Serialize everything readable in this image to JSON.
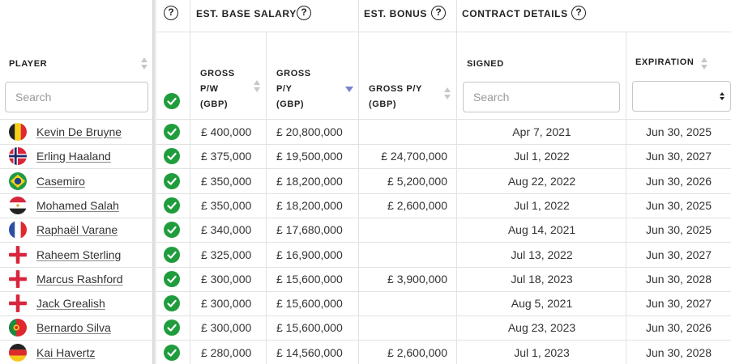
{
  "groups": {
    "base_salary": "EST. BASE SALARY",
    "bonus": "EST. BONUS",
    "contract": "CONTRACT DETAILS",
    "help_glyph": "?"
  },
  "columns": {
    "player": "PLAYER",
    "gross_pw": [
      "GROSS",
      "P/W",
      "(GBP)"
    ],
    "gross_py": [
      "GROSS",
      "P/Y",
      "(GBP)"
    ],
    "bonus_py": [
      "GROSS P/Y",
      "(GBP)"
    ],
    "signed": "SIGNED",
    "expiration": "EXPIRATION"
  },
  "filters": {
    "player_placeholder": "Search",
    "signed_placeholder": "Search",
    "expiration_value": ""
  },
  "colors": {
    "check": "#1f9d3d",
    "sort_active": "#7b83c9"
  },
  "rows": [
    {
      "name": "Kevin De Bruyne",
      "flag": "belgium-flag-icon",
      "pw": "£ 400,000",
      "py": "£ 20,800,000",
      "bonus": "",
      "signed": "Apr 7, 2021",
      "expiration": "Jun 30, 2025"
    },
    {
      "name": "Erling Haaland",
      "flag": "norway-flag-icon",
      "pw": "£ 375,000",
      "py": "£ 19,500,000",
      "bonus": "£ 24,700,000",
      "signed": "Jul 1, 2022",
      "expiration": "Jun 30, 2027"
    },
    {
      "name": "Casemiro",
      "flag": "brazil-flag-icon",
      "pw": "£ 350,000",
      "py": "£ 18,200,000",
      "bonus": "£ 5,200,000",
      "signed": "Aug 22, 2022",
      "expiration": "Jun 30, 2026"
    },
    {
      "name": "Mohamed Salah",
      "flag": "egypt-flag-icon",
      "pw": "£ 350,000",
      "py": "£ 18,200,000",
      "bonus": "£ 2,600,000",
      "signed": "Jul 1, 2022",
      "expiration": "Jun 30, 2025"
    },
    {
      "name": "Raphaël Varane",
      "flag": "france-flag-icon",
      "pw": "£ 340,000",
      "py": "£ 17,680,000",
      "bonus": "",
      "signed": "Aug 14, 2021",
      "expiration": "Jun 30, 2025"
    },
    {
      "name": "Raheem Sterling",
      "flag": "england-flag-icon",
      "pw": "£ 325,000",
      "py": "£ 16,900,000",
      "bonus": "",
      "signed": "Jul 13, 2022",
      "expiration": "Jun 30, 2027"
    },
    {
      "name": "Marcus Rashford",
      "flag": "england-flag-icon",
      "pw": "£ 300,000",
      "py": "£ 15,600,000",
      "bonus": "£ 3,900,000",
      "signed": "Jul 18, 2023",
      "expiration": "Jun 30, 2028"
    },
    {
      "name": "Jack Grealish",
      "flag": "england-flag-icon",
      "pw": "£ 300,000",
      "py": "£ 15,600,000",
      "bonus": "",
      "signed": "Aug 5, 2021",
      "expiration": "Jun 30, 2027"
    },
    {
      "name": "Bernardo Silva",
      "flag": "portugal-flag-icon",
      "pw": "£ 300,000",
      "py": "£ 15,600,000",
      "bonus": "",
      "signed": "Aug 23, 2023",
      "expiration": "Jun 30, 2026"
    },
    {
      "name": "Kai Havertz",
      "flag": "germany-flag-icon",
      "pw": "£ 280,000",
      "py": "£ 14,560,000",
      "bonus": "£ 2,600,000",
      "signed": "Jul 1, 2023",
      "expiration": "Jun 30, 2028"
    }
  ]
}
